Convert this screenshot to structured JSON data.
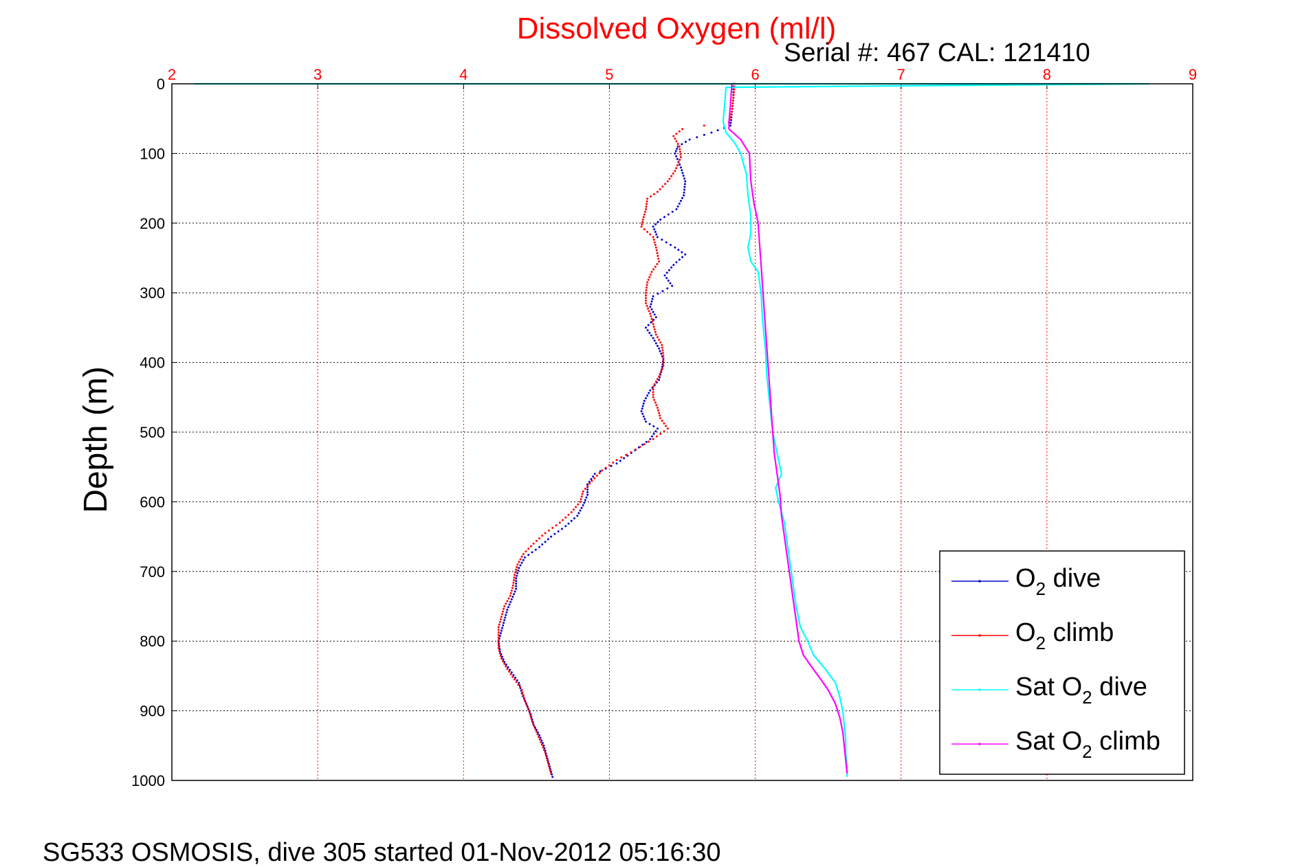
{
  "chart_data": {
    "type": "scatter",
    "title": "Dissolved Oxygen (ml/l)",
    "subtitle": "Serial #: 467  CAL: 121410",
    "ylabel": "Depth (m)",
    "footer": "SG533 OSMOSIS, dive 305 started 01-Nov-2012 05:16:30",
    "xlim": [
      2,
      9
    ],
    "ylim": [
      0,
      1000
    ],
    "y_reversed": true,
    "x_ticks": [
      "2",
      "3",
      "4",
      "5",
      "6",
      "7",
      "8",
      "9"
    ],
    "y_ticks": [
      "0",
      "100",
      "200",
      "300",
      "400",
      "500",
      "600",
      "700",
      "800",
      "900",
      "1000"
    ],
    "x_axis_position": "top",
    "grid": true,
    "legend_position": "bottom-right",
    "series": [
      {
        "label_main": "O",
        "label_sub": "2",
        "label_rest": " dive",
        "color": "#0000cc",
        "style": "dots",
        "points": [
          [
            5.85,
            0
          ],
          [
            5.85,
            20
          ],
          [
            5.84,
            40
          ],
          [
            5.83,
            60
          ],
          [
            5.7,
            70
          ],
          [
            5.55,
            80
          ],
          [
            5.47,
            90
          ],
          [
            5.45,
            100
          ],
          [
            5.49,
            120
          ],
          [
            5.52,
            140
          ],
          [
            5.51,
            160
          ],
          [
            5.46,
            180
          ],
          [
            5.35,
            195
          ],
          [
            5.3,
            205
          ],
          [
            5.33,
            220
          ],
          [
            5.45,
            235
          ],
          [
            5.52,
            245
          ],
          [
            5.44,
            260
          ],
          [
            5.38,
            275
          ],
          [
            5.43,
            290
          ],
          [
            5.3,
            305
          ],
          [
            5.28,
            320
          ],
          [
            5.32,
            335
          ],
          [
            5.25,
            350
          ],
          [
            5.3,
            365
          ],
          [
            5.34,
            380
          ],
          [
            5.37,
            395
          ],
          [
            5.36,
            410
          ],
          [
            5.34,
            425
          ],
          [
            5.28,
            440
          ],
          [
            5.24,
            455
          ],
          [
            5.22,
            470
          ],
          [
            5.25,
            485
          ],
          [
            5.33,
            495
          ],
          [
            5.28,
            510
          ],
          [
            5.15,
            530
          ],
          [
            5.05,
            545
          ],
          [
            4.9,
            560
          ],
          [
            4.85,
            575
          ],
          [
            4.85,
            590
          ],
          [
            4.82,
            605
          ],
          [
            4.78,
            620
          ],
          [
            4.7,
            635
          ],
          [
            4.6,
            650
          ],
          [
            4.52,
            665
          ],
          [
            4.42,
            680
          ],
          [
            4.38,
            695
          ],
          [
            4.36,
            710
          ],
          [
            4.36,
            725
          ],
          [
            4.33,
            740
          ],
          [
            4.3,
            755
          ],
          [
            4.28,
            770
          ],
          [
            4.26,
            785
          ],
          [
            4.24,
            800
          ],
          [
            4.25,
            815
          ],
          [
            4.28,
            830
          ],
          [
            4.33,
            845
          ],
          [
            4.38,
            860
          ],
          [
            4.4,
            875
          ],
          [
            4.43,
            890
          ],
          [
            4.46,
            905
          ],
          [
            4.48,
            920
          ],
          [
            4.52,
            935
          ],
          [
            4.55,
            950
          ],
          [
            4.57,
            965
          ],
          [
            4.59,
            980
          ],
          [
            4.61,
            995
          ]
        ]
      },
      {
        "label_main": "O",
        "label_sub": "2",
        "label_rest": " climb",
        "color": "#ff0000",
        "style": "dots",
        "points": [
          [
            5.86,
            0
          ],
          [
            5.85,
            20
          ],
          [
            5.84,
            40
          ],
          [
            5.82,
            55
          ],
          [
            5.65,
            60
          ],
          [
            5.5,
            65
          ],
          [
            5.44,
            75
          ],
          [
            5.48,
            90
          ],
          [
            5.49,
            105
          ],
          [
            5.45,
            125
          ],
          [
            5.4,
            140
          ],
          [
            5.33,
            155
          ],
          [
            5.26,
            165
          ],
          [
            5.25,
            180
          ],
          [
            5.23,
            195
          ],
          [
            5.22,
            205
          ],
          [
            5.3,
            220
          ],
          [
            5.32,
            235
          ],
          [
            5.34,
            255
          ],
          [
            5.29,
            270
          ],
          [
            5.26,
            285
          ],
          [
            5.25,
            300
          ],
          [
            5.25,
            315
          ],
          [
            5.28,
            330
          ],
          [
            5.3,
            345
          ],
          [
            5.32,
            360
          ],
          [
            5.36,
            375
          ],
          [
            5.37,
            390
          ],
          [
            5.37,
            405
          ],
          [
            5.34,
            420
          ],
          [
            5.3,
            435
          ],
          [
            5.3,
            450
          ],
          [
            5.33,
            465
          ],
          [
            5.35,
            480
          ],
          [
            5.4,
            495
          ],
          [
            5.3,
            510
          ],
          [
            5.18,
            525
          ],
          [
            5.05,
            540
          ],
          [
            4.95,
            555
          ],
          [
            4.88,
            570
          ],
          [
            4.82,
            585
          ],
          [
            4.8,
            600
          ],
          [
            4.74,
            615
          ],
          [
            4.66,
            630
          ],
          [
            4.56,
            645
          ],
          [
            4.48,
            660
          ],
          [
            4.41,
            675
          ],
          [
            4.37,
            690
          ],
          [
            4.35,
            705
          ],
          [
            4.34,
            720
          ],
          [
            4.32,
            735
          ],
          [
            4.28,
            750
          ],
          [
            4.26,
            765
          ],
          [
            4.24,
            780
          ],
          [
            4.24,
            795
          ],
          [
            4.24,
            810
          ],
          [
            4.26,
            825
          ],
          [
            4.3,
            840
          ],
          [
            4.35,
            855
          ],
          [
            4.4,
            870
          ],
          [
            4.42,
            885
          ],
          [
            4.45,
            900
          ],
          [
            4.47,
            915
          ],
          [
            4.5,
            930
          ],
          [
            4.53,
            945
          ],
          [
            4.56,
            960
          ],
          [
            4.58,
            975
          ],
          [
            4.6,
            990
          ]
        ]
      },
      {
        "label_main": "Sat O",
        "label_sub": "2",
        "label_rest": " dive",
        "color": "#00ffff",
        "style": "line",
        "points": [
          [
            2.15,
            0
          ],
          [
            8.7,
            0
          ],
          [
            5.8,
            5
          ],
          [
            5.79,
            30
          ],
          [
            5.78,
            55
          ],
          [
            5.8,
            70
          ],
          [
            5.86,
            85
          ],
          [
            5.9,
            100
          ],
          [
            5.94,
            130
          ],
          [
            5.95,
            160
          ],
          [
            5.97,
            190
          ],
          [
            5.97,
            215
          ],
          [
            5.95,
            235
          ],
          [
            5.97,
            255
          ],
          [
            6.02,
            270
          ],
          [
            6.04,
            300
          ],
          [
            6.05,
            340
          ],
          [
            6.07,
            380
          ],
          [
            6.08,
            420
          ],
          [
            6.1,
            460
          ],
          [
            6.12,
            500
          ],
          [
            6.15,
            530
          ],
          [
            6.18,
            560
          ],
          [
            6.14,
            580
          ],
          [
            6.16,
            600
          ],
          [
            6.2,
            630
          ],
          [
            6.22,
            660
          ],
          [
            6.24,
            690
          ],
          [
            6.26,
            720
          ],
          [
            6.28,
            750
          ],
          [
            6.31,
            780
          ],
          [
            6.36,
            800
          ],
          [
            6.4,
            820
          ],
          [
            6.48,
            840
          ],
          [
            6.55,
            860
          ],
          [
            6.58,
            880
          ],
          [
            6.6,
            900
          ],
          [
            6.61,
            920
          ],
          [
            6.62,
            940
          ],
          [
            6.62,
            960
          ],
          [
            6.63,
            980
          ],
          [
            6.63,
            995
          ]
        ]
      },
      {
        "label_main": "Sat O",
        "label_sub": "2",
        "label_rest": " climb",
        "color": "#ff00ff",
        "style": "line",
        "points": [
          [
            5.84,
            0
          ],
          [
            5.83,
            30
          ],
          [
            5.82,
            55
          ],
          [
            5.82,
            65
          ],
          [
            5.9,
            80
          ],
          [
            5.96,
            100
          ],
          [
            5.97,
            140
          ],
          [
            5.99,
            170
          ],
          [
            6.02,
            200
          ],
          [
            6.03,
            230
          ],
          [
            6.04,
            260
          ],
          [
            6.05,
            290
          ],
          [
            6.06,
            320
          ],
          [
            6.07,
            350
          ],
          [
            6.08,
            380
          ],
          [
            6.09,
            410
          ],
          [
            6.1,
            440
          ],
          [
            6.11,
            470
          ],
          [
            6.12,
            500
          ],
          [
            6.13,
            530
          ],
          [
            6.15,
            560
          ],
          [
            6.17,
            590
          ],
          [
            6.18,
            620
          ],
          [
            6.2,
            650
          ],
          [
            6.22,
            680
          ],
          [
            6.24,
            710
          ],
          [
            6.26,
            740
          ],
          [
            6.28,
            770
          ],
          [
            6.3,
            800
          ],
          [
            6.33,
            820
          ],
          [
            6.38,
            835
          ],
          [
            6.45,
            855
          ],
          [
            6.5,
            870
          ],
          [
            6.55,
            890
          ],
          [
            6.58,
            910
          ],
          [
            6.6,
            930
          ],
          [
            6.61,
            950
          ],
          [
            6.62,
            970
          ],
          [
            6.63,
            990
          ]
        ]
      }
    ]
  }
}
